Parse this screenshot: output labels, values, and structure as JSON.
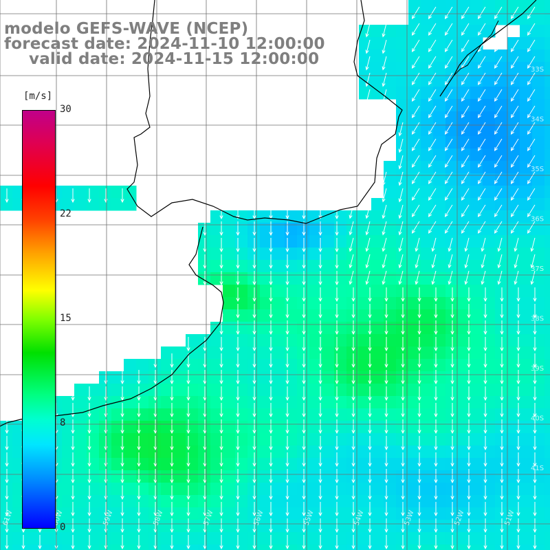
{
  "title": {
    "model": "modelo GEFS-WAVE (NCEP)",
    "forecast": "forecast date: 2024-11-10 12:00:00",
    "valid": "valid date: 2024-11-15 12:00:00"
  },
  "colorbar": {
    "unit": "[m/s]",
    "ticks": [
      "30",
      "22",
      "15",
      "8",
      "0"
    ],
    "colors": [
      "#0000ff",
      "#00e6ff",
      "#00e000",
      "#ffff00",
      "#ff0000",
      "#c0008a"
    ]
  },
  "map": {
    "lon_labels": [
      "61W",
      "60W",
      "59W",
      "58W",
      "57W",
      "56W",
      "55W",
      "54W",
      "53W",
      "52W",
      "51W"
    ],
    "lat_labels": [
      "33S",
      "34S",
      "35S",
      "36S",
      "37S",
      "38S",
      "39S",
      "40S",
      "41S"
    ],
    "land_color": "#ffffff",
    "coast_color": "#000000",
    "arrow_color": "#ffffff"
  }
}
